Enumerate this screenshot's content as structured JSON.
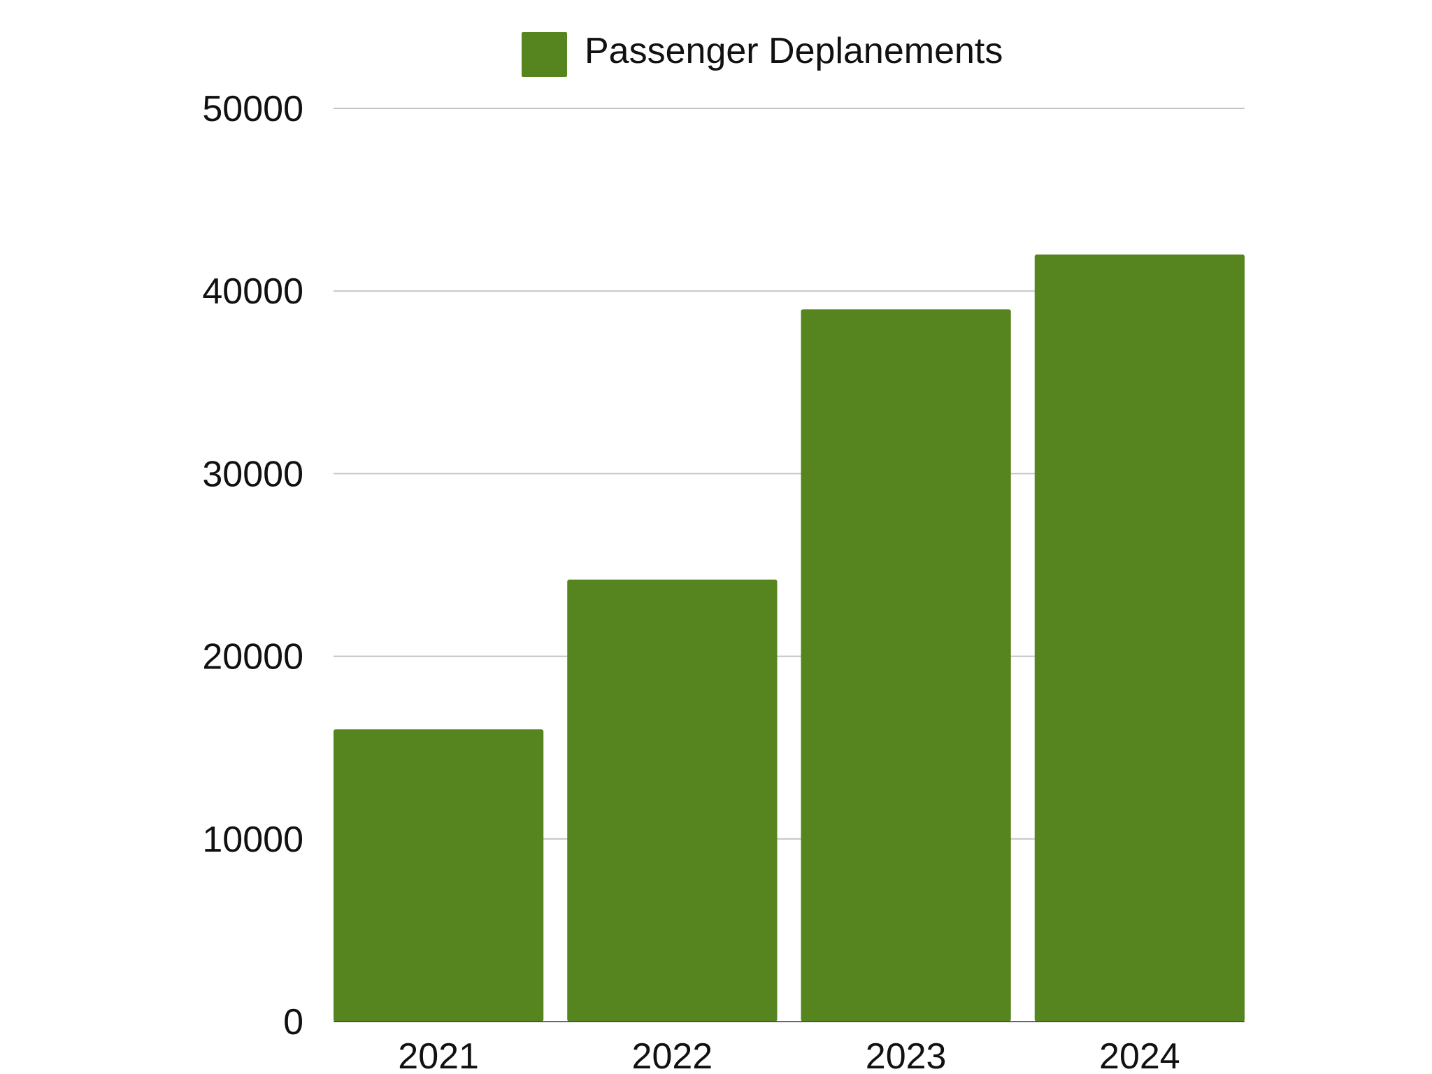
{
  "chart_data": {
    "type": "bar",
    "title": "",
    "xlabel": "",
    "ylabel": "",
    "categories": [
      "2021",
      "2022",
      "2023",
      "2024"
    ],
    "series": [
      {
        "name": "Passenger Deplanements",
        "values": [
          16000,
          24200,
          39000,
          42000
        ],
        "color": "#56841f"
      }
    ],
    "ylim": [
      0,
      50000
    ],
    "yticks": [
      "0",
      "10000",
      "20000",
      "30000",
      "40000",
      "50000"
    ],
    "grid": true,
    "legend_position": "top-center"
  }
}
